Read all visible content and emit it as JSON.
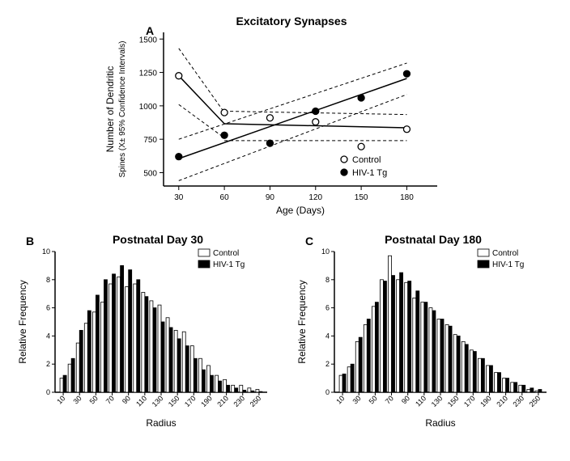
{
  "panelA": {
    "label": "A",
    "title": "Excitatory  Synapses",
    "type": "scatter-line",
    "xlabel": "Age (Days)",
    "ylabel": "Number of Dendritic",
    "ylabel2": "Spines (X± 95% Confidence Intervals)",
    "xlim": [
      20,
      200
    ],
    "ylim": [
      400,
      1550
    ],
    "xticks": [
      30,
      60,
      90,
      120,
      150,
      180
    ],
    "yticks": [
      500,
      750,
      1000,
      1250,
      1500
    ],
    "series": [
      {
        "name": "Control",
        "marker": "open-circle",
        "color": "#000000",
        "fill": "#ffffff",
        "points": [
          {
            "x": 30,
            "y": 1225
          },
          {
            "x": 60,
            "y": 950
          },
          {
            "x": 90,
            "y": 910
          },
          {
            "x": 120,
            "y": 880
          },
          {
            "x": 150,
            "y": 695
          },
          {
            "x": 180,
            "y": 825
          }
        ],
        "segments": [
          {
            "x1": 30,
            "y1": 1225,
            "x2": 60,
            "y2": 866
          },
          {
            "x1": 60,
            "y1": 866,
            "x2": 180,
            "y2": 836
          }
        ],
        "ci": [
          {
            "x1": 30,
            "y1": 1430,
            "x2": 60,
            "y2": 950
          },
          {
            "x1": 30,
            "y1": 1010,
            "x2": 60,
            "y2": 760
          },
          {
            "x1": 60,
            "y1": 960,
            "x2": 180,
            "y2": 935
          },
          {
            "x1": 60,
            "y1": 740,
            "x2": 180,
            "y2": 740
          }
        ]
      },
      {
        "name": "HIV-1 Tg",
        "marker": "filled-circle",
        "color": "#000000",
        "fill": "#000000",
        "points": [
          {
            "x": 30,
            "y": 620
          },
          {
            "x": 60,
            "y": 780
          },
          {
            "x": 90,
            "y": 720
          },
          {
            "x": 120,
            "y": 960
          },
          {
            "x": 150,
            "y": 1060
          },
          {
            "x": 180,
            "y": 1240
          }
        ],
        "segments": [
          {
            "x1": 30,
            "y1": 605,
            "x2": 180,
            "y2": 1205
          }
        ],
        "ci": [
          {
            "x1": 30,
            "y1": 750,
            "x2": 180,
            "y2": 1320
          },
          {
            "x1": 30,
            "y1": 440,
            "x2": 180,
            "y2": 1085
          }
        ]
      }
    ],
    "legend": [
      {
        "label": "Control",
        "marker": "open-circle"
      },
      {
        "label": "HIV-1 Tg",
        "marker": "filled-circle"
      }
    ],
    "axis_color": "#000000",
    "dash_color": "#000000",
    "background": "#ffffff",
    "label_fontsize": 11,
    "tick_fontsize": 10
  },
  "panelB": {
    "label": "B",
    "title": "Postnatal Day 30",
    "type": "bar",
    "xlabel": "Radius",
    "ylabel": "Relative Frequency",
    "xlim": [
      0,
      260
    ],
    "ylim": [
      0,
      10
    ],
    "xticks": [
      10,
      30,
      50,
      70,
      90,
      110,
      130,
      150,
      170,
      190,
      210,
      230,
      250
    ],
    "yticks": [
      0,
      2,
      4,
      6,
      8,
      10
    ],
    "bar_width": 4.0,
    "categories": [
      10,
      20,
      30,
      40,
      50,
      60,
      70,
      80,
      90,
      100,
      110,
      120,
      130,
      140,
      150,
      160,
      170,
      180,
      190,
      200,
      210,
      220,
      230,
      240,
      250
    ],
    "series": [
      {
        "name": "Control",
        "color": "#ffffff",
        "border": "#000000",
        "values": [
          1.0,
          2.0,
          3.5,
          4.9,
          5.7,
          6.4,
          7.7,
          8.2,
          7.5,
          7.7,
          7.1,
          6.5,
          6.2,
          5.3,
          4.4,
          4.3,
          3.3,
          2.4,
          1.9,
          1.2,
          0.9,
          0.5,
          0.5,
          0.3,
          0.2
        ]
      },
      {
        "name": "HIV-1 Tg",
        "color": "#000000",
        "border": "#000000",
        "values": [
          1.2,
          2.4,
          4.4,
          5.8,
          6.9,
          8.0,
          8.4,
          9.0,
          8.7,
          8.0,
          6.8,
          6.0,
          5.0,
          4.6,
          3.8,
          3.3,
          2.4,
          1.6,
          1.2,
          0.8,
          0.5,
          0.3,
          0.15,
          0.1,
          0.05
        ]
      }
    ],
    "legend": [
      {
        "label": "Control",
        "fill": "#ffffff"
      },
      {
        "label": "HIV-1 Tg",
        "fill": "#000000"
      }
    ]
  },
  "panelC": {
    "label": "C",
    "title": "Postnatal Day 180",
    "type": "bar",
    "xlabel": "Radius",
    "ylabel": "Relative Frequency",
    "xlim": [
      0,
      260
    ],
    "ylim": [
      0,
      10
    ],
    "xticks": [
      10,
      30,
      50,
      70,
      90,
      110,
      130,
      150,
      170,
      190,
      210,
      230,
      250
    ],
    "yticks": [
      0,
      2,
      4,
      6,
      8,
      10
    ],
    "bar_width": 4.0,
    "categories": [
      10,
      20,
      30,
      40,
      50,
      60,
      70,
      80,
      90,
      100,
      110,
      120,
      130,
      140,
      150,
      160,
      170,
      180,
      190,
      200,
      210,
      220,
      230,
      240,
      250
    ],
    "series": [
      {
        "name": "Control",
        "color": "#ffffff",
        "border": "#000000",
        "values": [
          1.2,
          1.8,
          3.6,
          4.8,
          6.1,
          8.0,
          9.7,
          8.0,
          7.8,
          6.7,
          6.4,
          6.0,
          5.2,
          4.8,
          4.1,
          3.6,
          3.0,
          2.4,
          1.9,
          1.4,
          1.0,
          0.7,
          0.5,
          0.2,
          0.1
        ]
      },
      {
        "name": "HIV-1 Tg",
        "color": "#000000",
        "border": "#000000",
        "values": [
          1.3,
          2.0,
          3.9,
          5.2,
          6.4,
          7.9,
          8.3,
          8.5,
          7.9,
          7.2,
          6.4,
          5.8,
          5.2,
          4.7,
          4.0,
          3.4,
          2.9,
          2.4,
          1.9,
          1.4,
          1.0,
          0.7,
          0.5,
          0.3,
          0.2
        ]
      }
    ],
    "legend": [
      {
        "label": "Control",
        "fill": "#ffffff"
      },
      {
        "label": "HIV-1 Tg",
        "fill": "#000000"
      }
    ]
  }
}
